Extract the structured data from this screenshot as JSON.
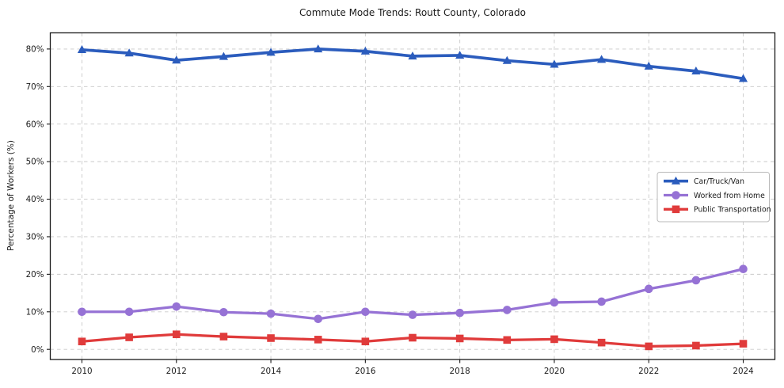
{
  "chart_data": {
    "type": "line",
    "title": "Commute Mode Trends: Routt County, Colorado",
    "xlabel": "",
    "ylabel": "Percentage of Workers (%)",
    "grid": true,
    "grid_color": "#c9c9c9",
    "axis_color": "#1a1a1a",
    "background_color": "#ffffff",
    "legend_position": "center-right",
    "x": [
      2010,
      2011,
      2012,
      2013,
      2014,
      2015,
      2016,
      2017,
      2018,
      2019,
      2020,
      2021,
      2022,
      2023,
      2024
    ],
    "series": [
      {
        "name": "Car/Truck/Van",
        "color": "#2b5cbd",
        "marker": "triangle",
        "line_width": 3.7,
        "values": [
          79.8,
          78.9,
          77.0,
          78.0,
          79.1,
          80.0,
          79.4,
          78.1,
          78.3,
          76.9,
          75.9,
          77.2,
          75.4,
          74.1,
          72.1
        ]
      },
      {
        "name": "Worked from Home",
        "color": "#9672d5",
        "marker": "circle",
        "line_width": 3.3,
        "values": [
          10.0,
          10.0,
          11.4,
          9.9,
          9.5,
          8.1,
          10.0,
          9.2,
          9.7,
          10.5,
          12.5,
          12.7,
          16.1,
          18.4,
          21.4
        ]
      },
      {
        "name": "Public Transportation",
        "color": "#e03b3b",
        "marker": "square",
        "line_width": 3.3,
        "values": [
          2.1,
          3.2,
          4.0,
          3.4,
          3.0,
          2.6,
          2.1,
          3.1,
          2.9,
          2.5,
          2.7,
          1.8,
          0.8,
          1.0,
          1.5
        ]
      }
    ],
    "xticks": [
      2010,
      2012,
      2014,
      2016,
      2018,
      2020,
      2022,
      2024
    ],
    "xtick_labels": [
      "2010",
      "2012",
      "2014",
      "2016",
      "2018",
      "2020",
      "2022",
      "2024"
    ],
    "yticks": [
      0,
      10,
      20,
      30,
      40,
      50,
      60,
      70,
      80
    ],
    "ytick_labels": [
      "0%",
      "10%",
      "20%",
      "30%",
      "40%",
      "50%",
      "60%",
      "70%",
      "80%"
    ],
    "xlim": [
      2009.33,
      2024.67
    ],
    "ylim": [
      -2.7,
      84.3
    ]
  }
}
